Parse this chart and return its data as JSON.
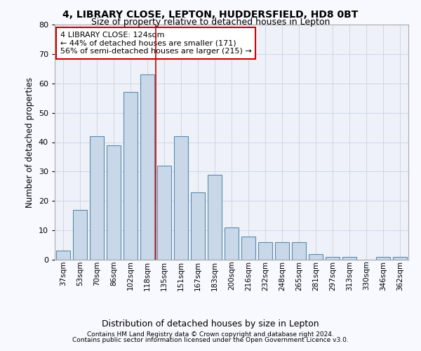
{
  "title1": "4, LIBRARY CLOSE, LEPTON, HUDDERSFIELD, HD8 0BT",
  "title2": "Size of property relative to detached houses in Lepton",
  "xlabel": "Distribution of detached houses by size in Lepton",
  "ylabel": "Number of detached properties",
  "categories": [
    "37sqm",
    "53sqm",
    "70sqm",
    "86sqm",
    "102sqm",
    "118sqm",
    "135sqm",
    "151sqm",
    "167sqm",
    "183sqm",
    "200sqm",
    "216sqm",
    "232sqm",
    "248sqm",
    "265sqm",
    "281sqm",
    "297sqm",
    "313sqm",
    "330sqm",
    "346sqm",
    "362sqm"
  ],
  "values": [
    3,
    17,
    42,
    39,
    57,
    63,
    32,
    42,
    23,
    29,
    11,
    8,
    6,
    6,
    6,
    2,
    1,
    1,
    0,
    1,
    1
  ],
  "bar_color": "#c8d8e8",
  "bar_edge_color": "#5a8ab0",
  "grid_color": "#d0d8e8",
  "background_color": "#eef2f8",
  "fig_background": "#f8f8ff",
  "vline_x": 5.5,
  "vline_color": "#cc0000",
  "annotation_text": "4 LIBRARY CLOSE: 124sqm\n← 44% of detached houses are smaller (171)\n56% of semi-detached houses are larger (215) →",
  "annotation_box_color": "#ffffff",
  "annotation_box_edge": "#cc0000",
  "ylim": [
    0,
    80
  ],
  "yticks": [
    0,
    10,
    20,
    30,
    40,
    50,
    60,
    70,
    80
  ],
  "footer1": "Contains HM Land Registry data © Crown copyright and database right 2024.",
  "footer2": "Contains public sector information licensed under the Open Government Licence v3.0."
}
